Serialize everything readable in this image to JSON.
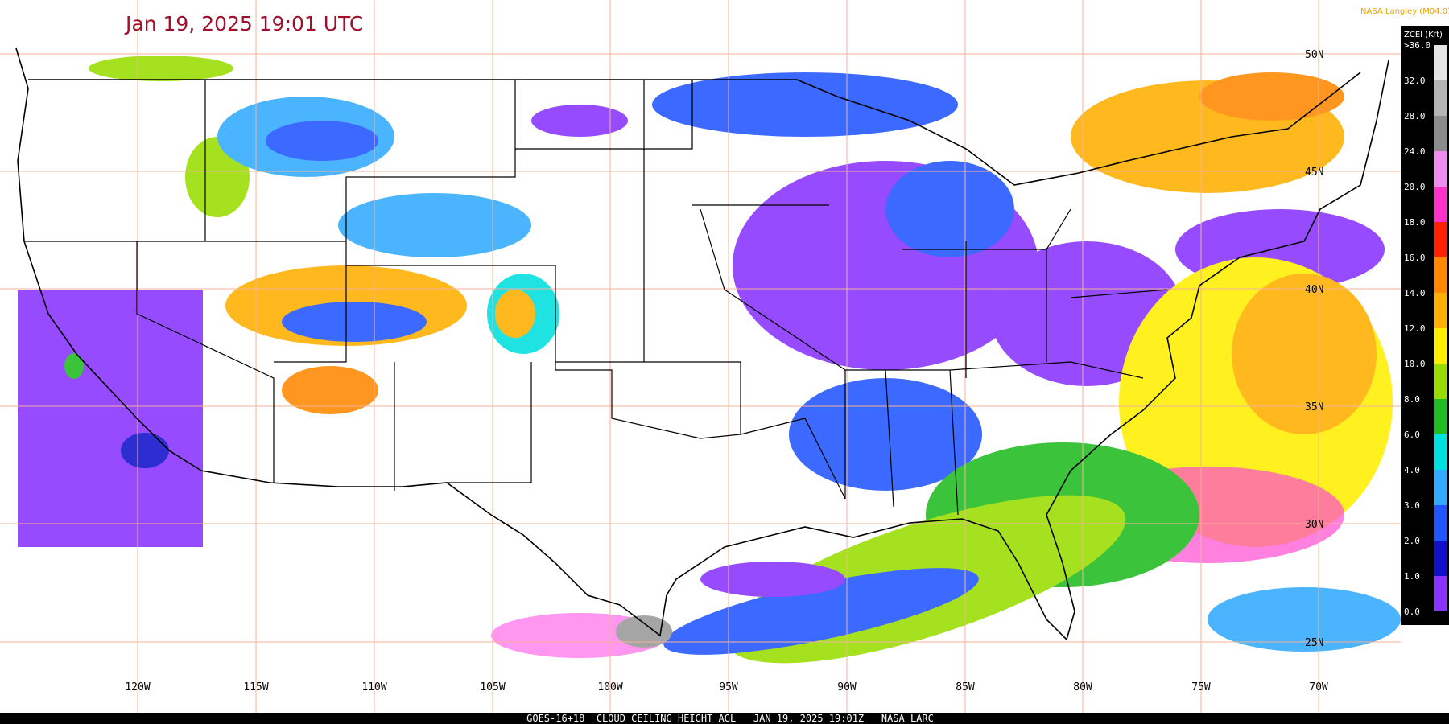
{
  "header": {
    "timestamp": "Jan 19, 2025 19:01 UTC",
    "credit": "NASA Langley (M04.0)"
  },
  "legend": {
    "title": "ZCEI (Kft)",
    "labels": [
      ">36.0",
      "32.0",
      "28.0",
      "24.0",
      "20.0",
      "18.0",
      "16.0",
      "14.0",
      "12.0",
      "10.0",
      "8.0",
      "6.0",
      "4.0",
      "3.0",
      "2.0",
      "1.0",
      "0.0"
    ]
  },
  "latitude_labels": [
    "50N",
    "45N",
    "40N",
    "35N",
    "30N",
    "25N"
  ],
  "longitude_labels": [
    "120W",
    "115W",
    "110W",
    "105W",
    "100W",
    "95W",
    "90W",
    "85W",
    "80W",
    "75W",
    "70W"
  ],
  "footer": "GOES-16+18  CLOUD CEILING HEIGHT AGL   JAN 19, 2025 19:01Z   NASA LARC"
}
